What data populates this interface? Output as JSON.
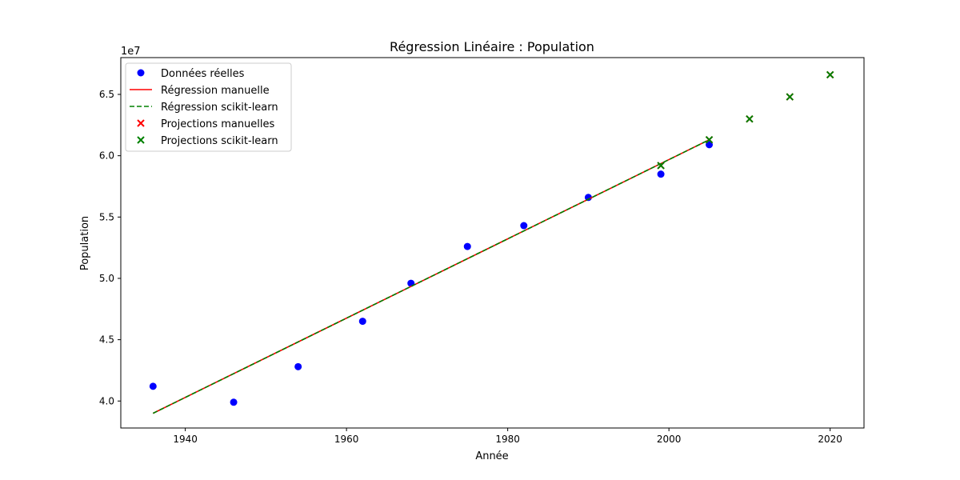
{
  "chart_data": {
    "type": "scatter",
    "title": "Régression Linéaire : Population",
    "xlabel": "Année",
    "ylabel": "Population",
    "y_offset_label": "1e7",
    "xlim": [
      1932.0,
      2024.2
    ],
    "ylim": [
      37800000,
      68000000
    ],
    "x_ticks": [
      1940,
      1960,
      1980,
      2000,
      2020
    ],
    "y_ticks": [
      40000000,
      45000000,
      50000000,
      55000000,
      60000000,
      65000000
    ],
    "y_tick_labels": [
      "4.0",
      "4.5",
      "5.0",
      "5.5",
      "6.0",
      "6.5"
    ],
    "grid": false,
    "legend_position": "top-left",
    "colors": {
      "reelles": "#0000ff",
      "manuelle": "#ff0000",
      "sklearn": "#008000"
    },
    "series": [
      {
        "name": "Données réelles",
        "kind": "scatter",
        "marker": "circle",
        "x": [
          1936,
          1946,
          1954,
          1962,
          1968,
          1975,
          1982,
          1990,
          1999,
          2005
        ],
        "y": [
          41200000,
          39900000,
          42800000,
          46500000,
          49600000,
          52600000,
          54300000,
          56600000,
          58500000,
          60900000
        ]
      },
      {
        "name": "Régression manuelle",
        "kind": "line",
        "style": "solid",
        "x": [
          1936,
          2005
        ],
        "y": [
          39000000,
          61300000
        ]
      },
      {
        "name": "Régression scikit-learn",
        "kind": "line",
        "style": "dashed",
        "x": [
          1936,
          2005
        ],
        "y": [
          39000000,
          61300000
        ]
      },
      {
        "name": "Projections manuelles",
        "kind": "scatter",
        "marker": "x",
        "x": [
          1999,
          2005,
          2010,
          2015,
          2020
        ],
        "y": [
          59200000,
          61300000,
          63000000,
          64800000,
          66600000
        ]
      },
      {
        "name": "Projections scikit-learn",
        "kind": "scatter",
        "marker": "x",
        "x": [
          1999,
          2005,
          2010,
          2015,
          2020
        ],
        "y": [
          59200000,
          61300000,
          63000000,
          64800000,
          66600000
        ]
      }
    ]
  }
}
